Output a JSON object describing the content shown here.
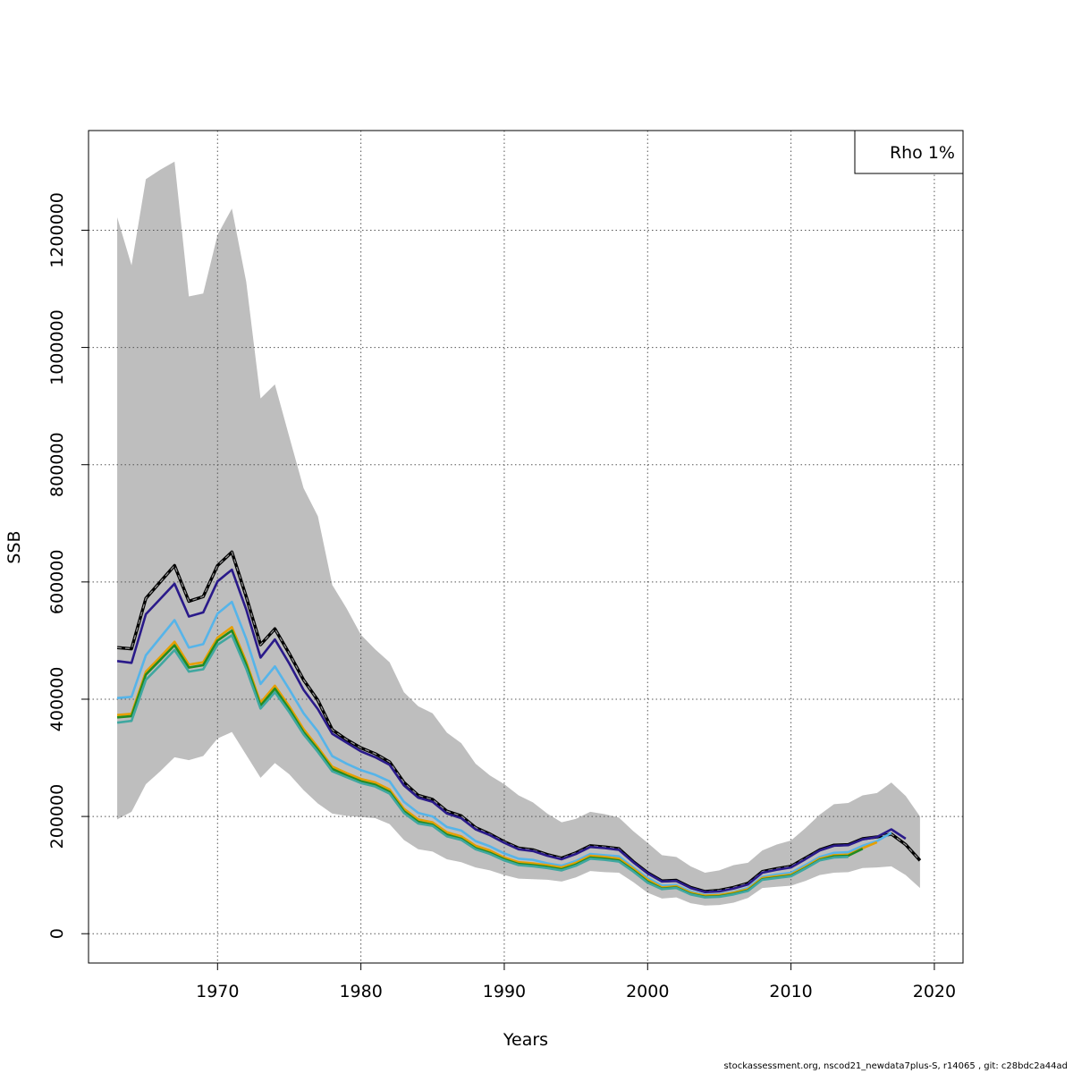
{
  "legend": {
    "label": "Rho 1%"
  },
  "footer": "stockassessment.org, nscod21_newdata7plus-S, r14065 , git: c28bdc2a44ad",
  "chart_data": {
    "type": "line",
    "xlabel": "Years",
    "ylabel": "SSB",
    "xlim": [
      1961,
      2022
    ],
    "ylim": [
      -50000,
      1370000
    ],
    "xticks": [
      1970,
      1980,
      1990,
      2000,
      2010,
      2020
    ],
    "yticks": [
      0,
      200000,
      400000,
      600000,
      800000,
      1000000,
      1200000
    ],
    "ytick_labels": [
      "0",
      "200000",
      "400000",
      "600000",
      "800000",
      "1000000",
      "1200000"
    ],
    "grid": true,
    "legend_position": "top-right",
    "band_color": "#bebebe",
    "confidence_band": {
      "years": [
        1963,
        1964,
        1965,
        1966,
        1967,
        1968,
        1969,
        1970,
        1971,
        1972,
        1973,
        1974,
        1975,
        1976,
        1977,
        1978,
        1979,
        1980,
        1981,
        1982,
        1983,
        1984,
        1985,
        1986,
        1987,
        1988,
        1989,
        1990,
        1991,
        1992,
        1993,
        1994,
        1995,
        1996,
        1997,
        1998,
        1999,
        2000,
        2001,
        2002,
        2003,
        2004,
        2005,
        2006,
        2007,
        2008,
        2009,
        2010,
        2011,
        2012,
        2013,
        2014,
        2015,
        2016,
        2017,
        2018,
        2019
      ],
      "lower": [
        195000,
        208000,
        255000,
        277000,
        301000,
        296000,
        303000,
        333000,
        344000,
        305000,
        266000,
        291000,
        272000,
        245000,
        222000,
        205000,
        201000,
        199000,
        197000,
        187000,
        160000,
        144000,
        140000,
        127000,
        122000,
        113000,
        108000,
        100000,
        94000,
        93000,
        92000,
        89000,
        96000,
        107000,
        105000,
        104000,
        88000,
        70000,
        60000,
        62000,
        52000,
        48000,
        49000,
        53000,
        61000,
        78000,
        80000,
        82000,
        90000,
        100000,
        104000,
        105000,
        112000,
        113000,
        115000,
        100000,
        78000
      ],
      "upper": [
        1222000,
        1140000,
        1287000,
        1303000,
        1317000,
        1087000,
        1092000,
        1192000,
        1237000,
        1112000,
        913000,
        937000,
        848000,
        760000,
        712000,
        595000,
        555000,
        510000,
        485000,
        463000,
        412000,
        388000,
        376000,
        343000,
        325000,
        290000,
        270000,
        255000,
        236000,
        224000,
        205000,
        190000,
        196000,
        208000,
        204000,
        198000,
        175000,
        155000,
        134000,
        131000,
        115000,
        104000,
        108000,
        117000,
        121000,
        142000,
        152000,
        159000,
        180000,
        203000,
        221000,
        223000,
        236000,
        240000,
        258000,
        235000,
        200000
      ]
    },
    "series": [
      {
        "color": "#000000",
        "dashed": true,
        "x": [
          1963,
          1964,
          1965,
          1966,
          1967,
          1968,
          1969,
          1970,
          1971,
          1972,
          1973,
          1974,
          1975,
          1976,
          1977,
          1978,
          1979,
          1980,
          1981,
          1982,
          1983,
          1984,
          1985,
          1986,
          1987,
          1988,
          1989,
          1990,
          1991,
          1992,
          1993,
          1994,
          1995,
          1996,
          1997,
          1998,
          1999,
          2000,
          2001,
          2002,
          2003,
          2004,
          2005,
          2006,
          2007,
          2008,
          2009,
          2010,
          2011,
          2012,
          2013,
          2014,
          2015,
          2016,
          2017,
          2018,
          2019
        ],
        "y": [
          488000,
          486000,
          572000,
          600000,
          628000,
          567000,
          575000,
          628000,
          651000,
          575000,
          493000,
          520000,
          478000,
          433000,
          398000,
          348000,
          331000,
          317000,
          307000,
          293000,
          258000,
          236000,
          229000,
          209000,
          201000,
          181000,
          170000,
          157000,
          146000,
          143000,
          135000,
          129000,
          138000,
          150000,
          148000,
          145000,
          123000,
          104000,
          90000,
          91000,
          79000,
          72000,
          74000,
          79000,
          86000,
          106000,
          111000,
          115000,
          129000,
          143000,
          151000,
          152000,
          162000,
          165000,
          170000,
          152000,
          125000
        ]
      },
      {
        "color": "#2a1a8a",
        "x": [
          1963,
          1964,
          1965,
          1966,
          1967,
          1968,
          1969,
          1970,
          1971,
          1972,
          1973,
          1974,
          1975,
          1976,
          1977,
          1978,
          1979,
          1980,
          1981,
          1982,
          1983,
          1984,
          1985,
          1986,
          1987,
          1988,
          1989,
          1990,
          1991,
          1992,
          1993,
          1994,
          1995,
          1996,
          1997,
          1998,
          1999,
          2000,
          2001,
          2002,
          2003,
          2004,
          2005,
          2006,
          2007,
          2008,
          2009,
          2010,
          2011,
          2012,
          2013,
          2014,
          2015,
          2016,
          2017,
          2018
        ],
        "y": [
          465000,
          462000,
          545000,
          571000,
          597000,
          541000,
          548000,
          601000,
          621000,
          553000,
          471000,
          502000,
          461000,
          416000,
          383000,
          341000,
          326000,
          311000,
          301000,
          288000,
          253000,
          232000,
          225000,
          205000,
          197000,
          178000,
          168000,
          155000,
          144000,
          141000,
          133000,
          127000,
          136000,
          148000,
          146000,
          143000,
          122000,
          103000,
          89000,
          90000,
          78000,
          71000,
          72000,
          77000,
          84000,
          104000,
          109000,
          113000,
          127000,
          142000,
          150000,
          151000,
          161000,
          165000,
          178000,
          162000
        ]
      },
      {
        "color": "#56b4e9",
        "x": [
          1963,
          1964,
          1965,
          1966,
          1967,
          1968,
          1969,
          1970,
          1971,
          1972,
          1973,
          1974,
          1975,
          1976,
          1977,
          1978,
          1979,
          1980,
          1981,
          1982,
          1983,
          1984,
          1985,
          1986,
          1987,
          1988,
          1989,
          1990,
          1991,
          1992,
          1993,
          1994,
          1995,
          1996,
          1997,
          1998,
          1999,
          2000,
          2001,
          2002,
          2003,
          2004,
          2005,
          2006,
          2007,
          2008,
          2009,
          2010,
          2011,
          2012,
          2013,
          2014,
          2015,
          2016,
          2017
        ],
        "y": [
          402000,
          404000,
          475000,
          505000,
          535000,
          488000,
          494000,
          546000,
          566000,
          503000,
          426000,
          456000,
          417000,
          376000,
          345000,
          303000,
          290000,
          279000,
          271000,
          260000,
          225000,
          206000,
          200000,
          182000,
          176000,
          158000,
          149000,
          137000,
          128000,
          126000,
          120000,
          116000,
          124000,
          136000,
          134000,
          132000,
          113000,
          95000,
          82000,
          83000,
          72000,
          66000,
          67000,
          71000,
          78000,
          97000,
          101000,
          104000,
          117000,
          131000,
          138000,
          139000,
          150000,
          158000,
          172000
        ]
      },
      {
        "color": "#e69f00",
        "x": [
          1963,
          1964,
          1965,
          1966,
          1967,
          1968,
          1969,
          1970,
          1971,
          1972,
          1973,
          1974,
          1975,
          1976,
          1977,
          1978,
          1979,
          1980,
          1981,
          1982,
          1983,
          1984,
          1985,
          1986,
          1987,
          1988,
          1989,
          1990,
          1991,
          1992,
          1993,
          1994,
          1995,
          1996,
          1997,
          1998,
          1999,
          2000,
          2001,
          2002,
          2003,
          2004,
          2005,
          2006,
          2007,
          2008,
          2009,
          2010,
          2011,
          2012,
          2013,
          2014,
          2015,
          2016
        ],
        "y": [
          373000,
          375000,
          447000,
          472000,
          498000,
          459000,
          463000,
          505000,
          523000,
          464000,
          394000,
          423000,
          388000,
          349000,
          318000,
          285000,
          274000,
          264000,
          258000,
          246000,
          213000,
          195000,
          190000,
          173000,
          166000,
          150000,
          142000,
          130000,
          122000,
          120000,
          117000,
          113000,
          121000,
          133000,
          131000,
          128000,
          111000,
          92000,
          79000,
          81000,
          70000,
          65000,
          66000,
          70000,
          76000,
          95000,
          98000,
          101000,
          114000,
          128000,
          134000,
          135000,
          146000,
          156000
        ]
      },
      {
        "color": "#228b22",
        "x": [
          1963,
          1964,
          1965,
          1966,
          1967,
          1968,
          1969,
          1970,
          1971,
          1972,
          1973,
          1974,
          1975,
          1976,
          1977,
          1978,
          1979,
          1980,
          1981,
          1982,
          1983,
          1984,
          1985,
          1986,
          1987,
          1988,
          1989,
          1990,
          1991,
          1992,
          1993,
          1994,
          1995,
          1996,
          1997,
          1998,
          1999,
          2000,
          2001,
          2002,
          2003,
          2004,
          2005,
          2006,
          2007,
          2008,
          2009,
          2010,
          2011,
          2012,
          2013,
          2014,
          2015
        ],
        "y": [
          369000,
          371000,
          442000,
          467000,
          492000,
          454000,
          458000,
          500000,
          517000,
          459000,
          389000,
          418000,
          383000,
          344000,
          314000,
          281000,
          270000,
          260000,
          254000,
          242000,
          209000,
          191000,
          186000,
          169000,
          162000,
          146000,
          138000,
          127000,
          119000,
          117000,
          114000,
          110000,
          118000,
          130000,
          128000,
          125000,
          108000,
          89000,
          77000,
          79000,
          68000,
          63000,
          64000,
          68000,
          74000,
          93000,
          96000,
          99000,
          112000,
          126000,
          132000,
          133000,
          145000
        ]
      },
      {
        "color": "#3fa7a0",
        "x": [
          1963,
          1964,
          1965,
          1966,
          1967,
          1968,
          1969,
          1970,
          1971,
          1972,
          1973,
          1974,
          1975,
          1976,
          1977,
          1978,
          1979,
          1980,
          1981,
          1982,
          1983,
          1984,
          1985,
          1986,
          1987,
          1988,
          1989,
          1990,
          1991,
          1992,
          1993,
          1994,
          1995,
          1996,
          1997,
          1998,
          1999,
          2000,
          2001,
          2002,
          2003,
          2004,
          2005,
          2006,
          2007,
          2008,
          2009,
          2010,
          2011,
          2012,
          2013,
          2014
        ],
        "y": [
          360000,
          363000,
          433000,
          458000,
          484000,
          447000,
          451000,
          493000,
          509000,
          452000,
          384000,
          412000,
          378000,
          340000,
          310000,
          277000,
          267000,
          257000,
          251000,
          239000,
          206000,
          188000,
          184000,
          166000,
          160000,
          144000,
          136000,
          125000,
          117000,
          115000,
          112000,
          108000,
          116000,
          128000,
          126000,
          123000,
          106000,
          87000,
          76000,
          78000,
          67000,
          62000,
          63000,
          67000,
          73000,
          92000,
          95000,
          98000,
          111000,
          125000,
          130000,
          131000
        ]
      }
    ]
  }
}
